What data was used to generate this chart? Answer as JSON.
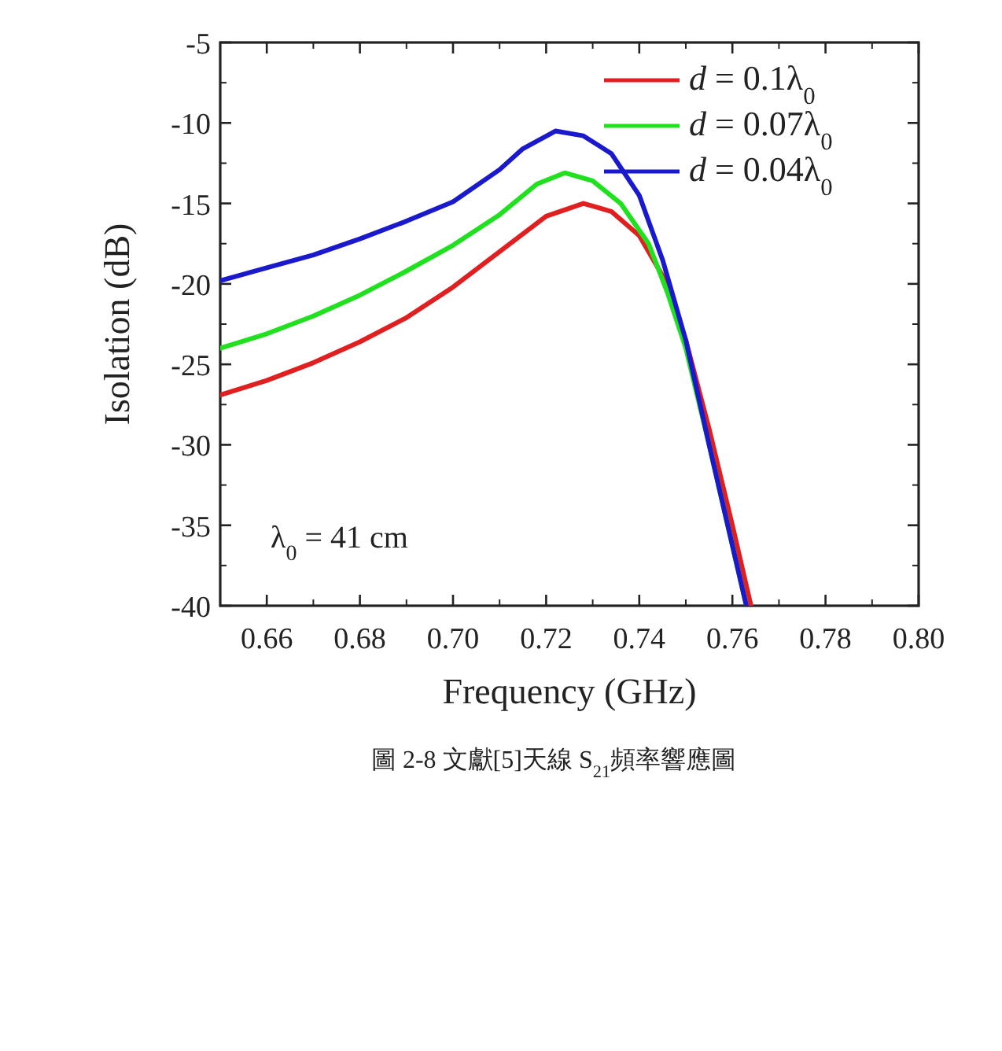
{
  "chart_data": {
    "type": "line",
    "xlabel": "Frequency (GHz)",
    "ylabel": "Isolation (dB)",
    "xlim": [
      0.65,
      0.8
    ],
    "ylim": [
      -40,
      -5
    ],
    "xticks": [
      {
        "value": 0.66,
        "label": "0.66"
      },
      {
        "value": 0.68,
        "label": "0.68"
      },
      {
        "value": 0.7,
        "label": "0.70"
      },
      {
        "value": 0.72,
        "label": "0.72"
      },
      {
        "value": 0.74,
        "label": "0.74"
      },
      {
        "value": 0.76,
        "label": "0.76"
      },
      {
        "value": 0.78,
        "label": "0.78"
      },
      {
        "value": 0.8,
        "label": "0.80"
      }
    ],
    "yticks": [
      -40,
      -35,
      -30,
      -25,
      -20,
      -15,
      -10,
      -5
    ],
    "series": [
      {
        "name": "*d* = 0.1λ$_{0}$",
        "color": "#e02020",
        "x": [
          0.65,
          0.66,
          0.67,
          0.68,
          0.69,
          0.7,
          0.71,
          0.72,
          0.728,
          0.734,
          0.74,
          0.745,
          0.75,
          0.755,
          0.76,
          0.764
        ],
        "values": [
          -26.9,
          -26.0,
          -24.9,
          -23.6,
          -22.1,
          -20.2,
          -18.0,
          -15.8,
          -15.0,
          -15.5,
          -17.0,
          -19.5,
          -23.5,
          -29.0,
          -35.0,
          -40.0
        ]
      },
      {
        "name": "*d* = 0.07λ$_{0}$",
        "color": "#20e020",
        "x": [
          0.65,
          0.66,
          0.67,
          0.68,
          0.69,
          0.7,
          0.71,
          0.718,
          0.724,
          0.73,
          0.736,
          0.742,
          0.746,
          0.75,
          0.755,
          0.759,
          0.763
        ],
        "values": [
          -24.0,
          -23.1,
          -22.0,
          -20.7,
          -19.2,
          -17.6,
          -15.7,
          -13.8,
          -13.1,
          -13.6,
          -15.0,
          -17.5,
          -20.5,
          -24.0,
          -30.0,
          -35.0,
          -40.0
        ]
      },
      {
        "name": "*d* = 0.04λ$_{0}$",
        "color": "#1a1acc",
        "x": [
          0.65,
          0.66,
          0.67,
          0.68,
          0.69,
          0.7,
          0.71,
          0.715,
          0.722,
          0.728,
          0.734,
          0.74,
          0.745,
          0.75,
          0.755,
          0.759,
          0.763
        ],
        "values": [
          -19.8,
          -19.0,
          -18.2,
          -17.2,
          -16.1,
          -14.9,
          -12.9,
          -11.6,
          -10.5,
          -10.8,
          -11.9,
          -14.5,
          -18.5,
          -23.5,
          -30.0,
          -35.0,
          -40.0
        ]
      }
    ],
    "legend": "top right",
    "line_style": "solid",
    "annotations": [
      "λ$_{0}$ = 41 cm",
      "圖 2-8 文獻[5]天線 S$_{21}$頻率響應圖"
    ]
  }
}
